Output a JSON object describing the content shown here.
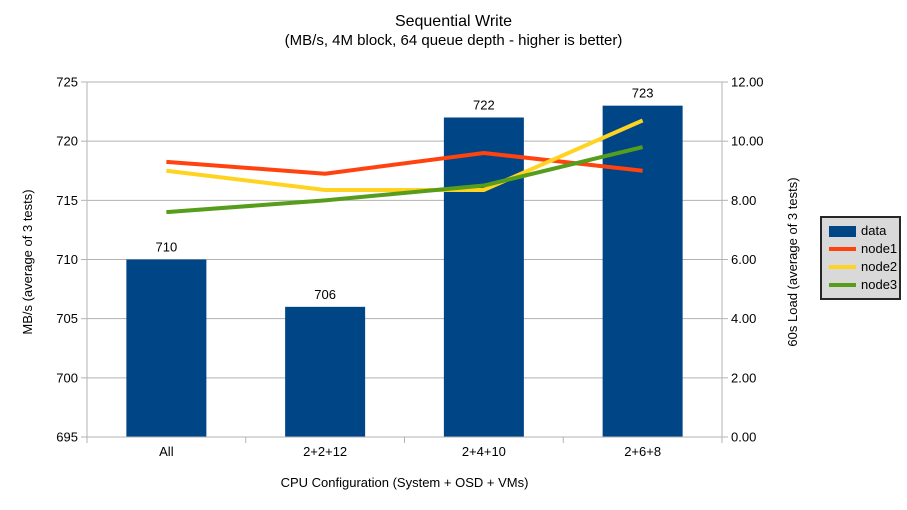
{
  "title": "Sequential Write",
  "subtitle": "(MB/s, 4M block, 64 queue depth - higher is better)",
  "chart_data": {
    "type": "combo-bar-line",
    "title": "Sequential Write",
    "subtitle": "(MB/s, 4M block, 64 queue depth - higher is better)",
    "categories": [
      "All",
      "2+2+12",
      "2+4+10",
      "2+6+8"
    ],
    "xlabel": "CPU Configuration (System + OSD + VMs)",
    "left_axis": {
      "label": "MB/s (average of 3 tests)",
      "min": 695,
      "max": 725,
      "step": 5,
      "decimals": 0
    },
    "right_axis": {
      "label": "60s Load (average of 3 tests)",
      "min": 0,
      "max": 12,
      "step": 2,
      "decimals": 2
    },
    "grid": "horizontal-only",
    "legend_position": "right",
    "series": [
      {
        "name": "data",
        "type": "bar",
        "axis": "left",
        "color": "#004586",
        "values": [
          710,
          706,
          722,
          723
        ],
        "data_labels": [
          "710",
          "706",
          "722",
          "723"
        ]
      },
      {
        "name": "node1",
        "type": "line",
        "axis": "right",
        "color": "#ff420e",
        "values": [
          9.3,
          8.9,
          9.6,
          9.0
        ]
      },
      {
        "name": "node2",
        "type": "line",
        "axis": "right",
        "color": "#ffd320",
        "values": [
          9.0,
          8.35,
          8.35,
          10.7
        ]
      },
      {
        "name": "node3",
        "type": "line",
        "axis": "right",
        "color": "#579d1c",
        "values": [
          7.6,
          8.0,
          8.5,
          9.8
        ]
      }
    ],
    "colors": {
      "background": "#ffffff",
      "grid": "#b3b3b3",
      "axis": "#b3b3b3",
      "text": "#000000",
      "legend_bg": "#d9d9d9",
      "legend_border": "#262626"
    }
  }
}
